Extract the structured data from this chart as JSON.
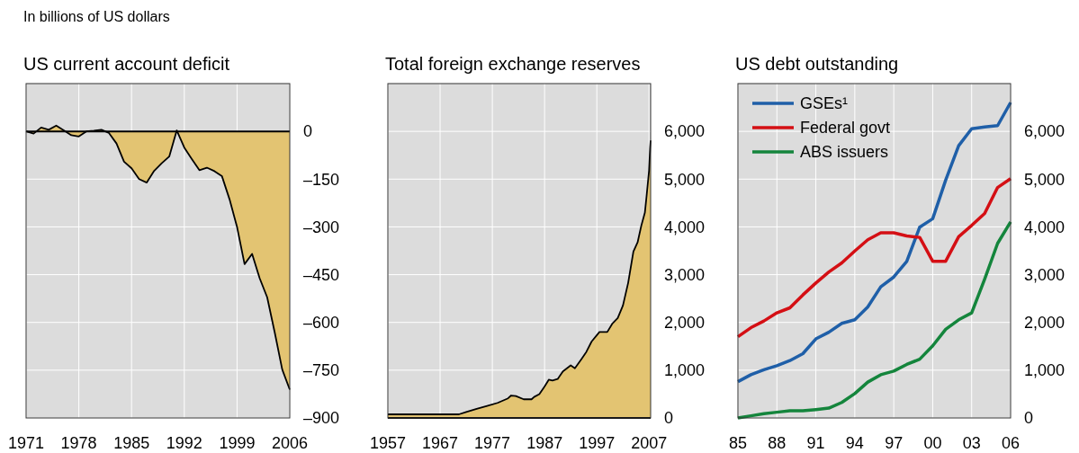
{
  "chart_data": [
    {
      "type": "area",
      "title": "US current account deficit",
      "annotations": [
        "In billions of US dollars"
      ],
      "x": [
        1971,
        1972,
        1973,
        1974,
        1975,
        1976,
        1977,
        1978,
        1979,
        1980,
        1981,
        1982,
        1983,
        1984,
        1985,
        1986,
        1987,
        1988,
        1989,
        1990,
        1991,
        1992,
        1993,
        1994,
        1995,
        1996,
        1997,
        1998,
        1999,
        2000,
        2001,
        2002,
        2003,
        2004,
        2005,
        2006
      ],
      "series": [
        {
          "color": "#e3c472",
          "values": [
            0,
            -7,
            12,
            5,
            18,
            3,
            -12,
            -16,
            0,
            2,
            5,
            -5,
            -38,
            -95,
            -116,
            -150,
            -161,
            -124,
            -100,
            -79,
            3,
            -51,
            -87,
            -122,
            -114,
            -125,
            -141,
            -213,
            -300,
            -417,
            -385,
            -461,
            -521,
            -631,
            -748,
            -811
          ]
        }
      ],
      "xlim": [
        1971,
        2006
      ],
      "xticks": [
        1971,
        1978,
        1985,
        1992,
        1999,
        2006
      ],
      "ylim": [
        -900,
        150
      ],
      "yticks": [
        {
          "value": 0,
          "label": "0"
        },
        {
          "value": -150,
          "label": "–150"
        },
        {
          "value": -300,
          "label": "–300"
        },
        {
          "value": -450,
          "label": "–450"
        },
        {
          "value": -600,
          "label": "–600"
        },
        {
          "value": -750,
          "label": "–750"
        },
        {
          "value": -900,
          "label": "–900"
        }
      ],
      "grid": true
    },
    {
      "type": "area",
      "title": "Total foreign exchange reserves",
      "x": [
        1957,
        1970.6,
        1972,
        1974,
        1976,
        1978,
        1980,
        1980.6,
        1981.5,
        1983,
        1984.5,
        1985,
        1986,
        1987,
        1987.8,
        1988.5,
        1989.5,
        1990.5,
        1992,
        1992.8,
        1994,
        1995,
        1996,
        1997.5,
        1999,
        2000,
        2001,
        2002,
        2003,
        2004,
        2004.8,
        2005.5,
        2006.2,
        2006.5,
        2007,
        2007.2,
        2007.3
      ],
      "series": [
        {
          "color": "#e3c472",
          "values": [
            75,
            75,
            125,
            190,
            250,
            315,
            410,
            470,
            460,
            390,
            390,
            440,
            500,
            660,
            800,
            785,
            815,
            975,
            1100,
            1040,
            1225,
            1385,
            1600,
            1800,
            1800,
            1980,
            2090,
            2355,
            2830,
            3485,
            3675,
            4020,
            4300,
            4620,
            5180,
            5650,
            5810
          ]
        }
      ],
      "xlim": [
        1957,
        2007.3
      ],
      "xticks": [
        1957,
        1967,
        1977,
        1987,
        1997,
        2007
      ],
      "ylim": [
        0,
        7000
      ],
      "yticks": [
        {
          "value": 0,
          "label": "0"
        },
        {
          "value": 1000,
          "label": "1,000"
        },
        {
          "value": 2000,
          "label": "2,000"
        },
        {
          "value": 3000,
          "label": "3,000"
        },
        {
          "value": 4000,
          "label": "4,000"
        },
        {
          "value": 5000,
          "label": "5,000"
        },
        {
          "value": 6000,
          "label": "6,000"
        }
      ],
      "grid": true
    },
    {
      "type": "line",
      "title": "US debt outstanding",
      "x": [
        1985,
        1986,
        1987,
        1988,
        1989,
        1990,
        1991,
        1992,
        1993,
        1994,
        1995,
        1996,
        1997,
        1998,
        1999,
        2000,
        2001,
        2002,
        2003,
        2004,
        2005,
        2006
      ],
      "series": [
        {
          "name": "GSEs¹",
          "color": "#1f5fa8",
          "values": [
            760,
            905,
            1010,
            1095,
            1200,
            1345,
            1655,
            1795,
            1980,
            2055,
            2325,
            2745,
            2950,
            3275,
            3995,
            4170,
            4980,
            5700,
            6055,
            6090,
            6120,
            6605
          ]
        },
        {
          "name": "Federal govt",
          "color": "#d40f14",
          "values": [
            1700,
            1890,
            2030,
            2200,
            2305,
            2575,
            2825,
            3055,
            3245,
            3495,
            3730,
            3875,
            3875,
            3810,
            3780,
            3280,
            3280,
            3795,
            4030,
            4280,
            4825,
            5010
          ]
        },
        {
          "name": "ABS issuers",
          "color": "#14853c",
          "values": [
            0,
            45,
            90,
            120,
            150,
            150,
            175,
            205,
            325,
            510,
            750,
            905,
            980,
            1120,
            1230,
            1510,
            1855,
            2055,
            2200,
            2905,
            3655,
            4105
          ]
        }
      ],
      "xlim": [
        1985,
        2006
      ],
      "xticks": [
        {
          "value": 1985,
          "label": "85"
        },
        {
          "value": 1988,
          "label": "88"
        },
        {
          "value": 1991,
          "label": "91"
        },
        {
          "value": 1994,
          "label": "94"
        },
        {
          "value": 1997,
          "label": "97"
        },
        {
          "value": 2000,
          "label": "00"
        },
        {
          "value": 2003,
          "label": "03"
        },
        {
          "value": 2006,
          "label": "06"
        }
      ],
      "ylim": [
        0,
        7000
      ],
      "yticks": [
        {
          "value": 0,
          "label": "0"
        },
        {
          "value": 1000,
          "label": "1,000"
        },
        {
          "value": 2000,
          "label": "2,000"
        },
        {
          "value": 3000,
          "label": "3,000"
        },
        {
          "value": 4000,
          "label": "4,000"
        },
        {
          "value": 5000,
          "label": "5,000"
        },
        {
          "value": 6000,
          "label": "6,000"
        }
      ],
      "grid": true,
      "legend": "top left"
    }
  ]
}
